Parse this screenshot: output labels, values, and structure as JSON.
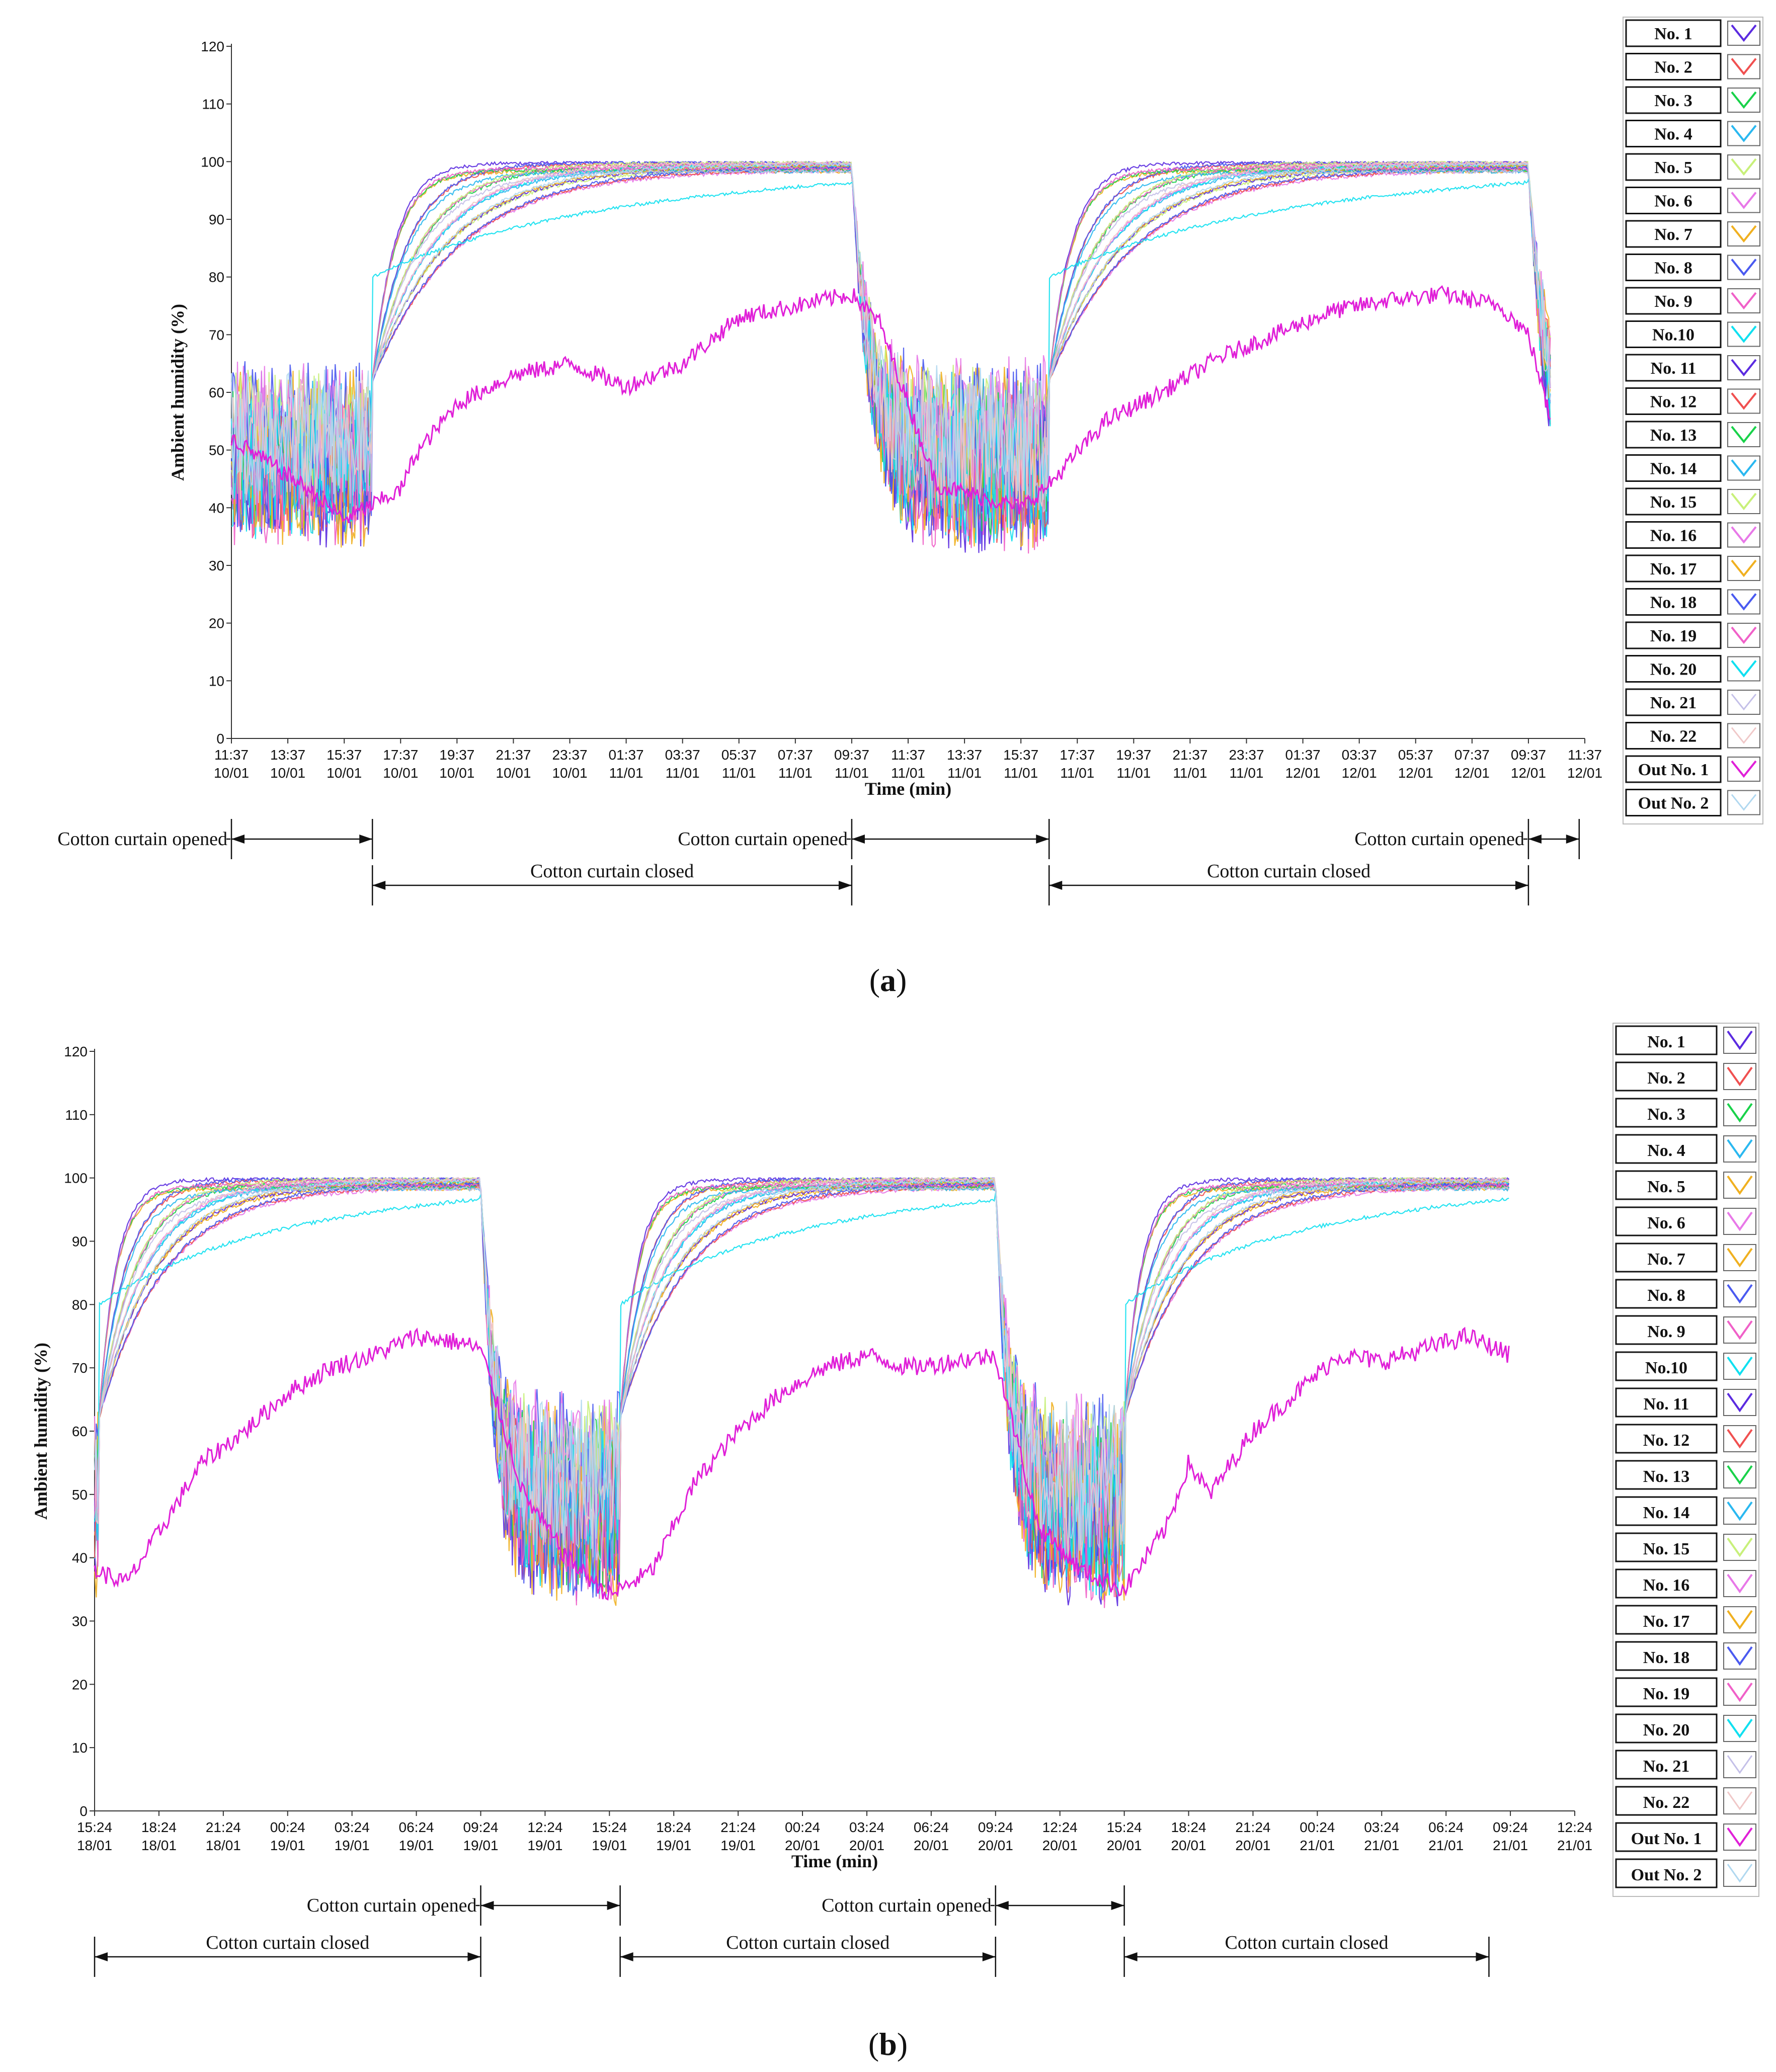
{
  "chart_data": [
    {
      "panel": "a",
      "type": "line",
      "caption_letter": "a",
      "ylabel": "Ambient humidity (%)",
      "xlabel": "Time (min)",
      "ylim": [
        0,
        120
      ],
      "yticks": [
        0,
        10,
        20,
        30,
        40,
        50,
        60,
        70,
        80,
        90,
        100,
        110,
        120
      ],
      "xlim_hours": [
        0,
        48
      ],
      "x_ticks": [
        {
          "t": "11:37",
          "d": "10/01"
        },
        {
          "t": "13:37",
          "d": "10/01"
        },
        {
          "t": "15:37",
          "d": "10/01"
        },
        {
          "t": "17:37",
          "d": "10/01"
        },
        {
          "t": "19:37",
          "d": "10/01"
        },
        {
          "t": "21:37",
          "d": "10/01"
        },
        {
          "t": "23:37",
          "d": "10/01"
        },
        {
          "t": "01:37",
          "d": "11/01"
        },
        {
          "t": "03:37",
          "d": "11/01"
        },
        {
          "t": "05:37",
          "d": "11/01"
        },
        {
          "t": "07:37",
          "d": "11/01"
        },
        {
          "t": "09:37",
          "d": "11/01"
        },
        {
          "t": "11:37",
          "d": "11/01"
        },
        {
          "t": "13:37",
          "d": "11/01"
        },
        {
          "t": "15:37",
          "d": "11/01"
        },
        {
          "t": "17:37",
          "d": "11/01"
        },
        {
          "t": "19:37",
          "d": "11/01"
        },
        {
          "t": "21:37",
          "d": "11/01"
        },
        {
          "t": "23:37",
          "d": "11/01"
        },
        {
          "t": "01:37",
          "d": "12/01"
        },
        {
          "t": "03:37",
          "d": "12/01"
        },
        {
          "t": "05:37",
          "d": "12/01"
        },
        {
          "t": "07:37",
          "d": "12/01"
        },
        {
          "t": "09:37",
          "d": "12/01"
        },
        {
          "t": "11:37",
          "d": "12/01"
        }
      ],
      "rise_times_hours": [
        5.0,
        29.0
      ],
      "drop_times_hours": [
        22.0,
        46.0
      ],
      "end_hour": 46.8,
      "outdoor_keypoints": [
        [
          0,
          52
        ],
        [
          2.5,
          44
        ],
        [
          4,
          38
        ],
        [
          6,
          43
        ],
        [
          6.5,
          49
        ],
        [
          8,
          58
        ],
        [
          10,
          63
        ],
        [
          12,
          65
        ],
        [
          14,
          61
        ],
        [
          16,
          65
        ],
        [
          18,
          73
        ],
        [
          20,
          75
        ],
        [
          22,
          77
        ],
        [
          23,
          72
        ],
        [
          25,
          44
        ],
        [
          28,
          40
        ],
        [
          29,
          44
        ],
        [
          31,
          55
        ],
        [
          33,
          60
        ],
        [
          35,
          66
        ],
        [
          37,
          70
        ],
        [
          39,
          74
        ],
        [
          41,
          76
        ],
        [
          43,
          77
        ],
        [
          45,
          75
        ],
        [
          46,
          70
        ],
        [
          46.8,
          55
        ]
      ],
      "curtain_annotations": [
        {
          "text": "Cotton curtain opened",
          "from_h": 0,
          "to_h": 5.0,
          "row": "upper",
          "label_side": "left"
        },
        {
          "text": "Cotton curtain closed",
          "from_h": 5.0,
          "to_h": 22.0,
          "row": "lower",
          "label_side": "above"
        },
        {
          "text": "Cotton curtain opened",
          "from_h": 22.0,
          "to_h": 29.0,
          "row": "upper",
          "label_side": "left"
        },
        {
          "text": "Cotton curtain closed",
          "from_h": 29.0,
          "to_h": 46.0,
          "row": "lower",
          "label_side": "above"
        },
        {
          "text": "Cotton curtain opened",
          "from_h": 46.0,
          "to_h": 47.8,
          "row": "upper",
          "label_side": "left"
        }
      ]
    },
    {
      "panel": "b",
      "type": "line",
      "caption_letter": "b",
      "ylabel": "Ambient humidity (%)",
      "xlabel": "Time (min)",
      "ylim": [
        0,
        120
      ],
      "yticks": [
        0,
        10,
        20,
        30,
        40,
        50,
        60,
        70,
        80,
        90,
        100,
        110,
        120
      ],
      "xlim_hours": [
        0,
        69
      ],
      "x_ticks": [
        {
          "t": "15:24",
          "d": "18/01"
        },
        {
          "t": "18:24",
          "d": "18/01"
        },
        {
          "t": "21:24",
          "d": "18/01"
        },
        {
          "t": "00:24",
          "d": "19/01"
        },
        {
          "t": "03:24",
          "d": "19/01"
        },
        {
          "t": "06:24",
          "d": "19/01"
        },
        {
          "t": "09:24",
          "d": "19/01"
        },
        {
          "t": "12:24",
          "d": "19/01"
        },
        {
          "t": "15:24",
          "d": "19/01"
        },
        {
          "t": "18:24",
          "d": "19/01"
        },
        {
          "t": "21:24",
          "d": "19/01"
        },
        {
          "t": "00:24",
          "d": "20/01"
        },
        {
          "t": "03:24",
          "d": "20/01"
        },
        {
          "t": "06:24",
          "d": "20/01"
        },
        {
          "t": "09:24",
          "d": "20/01"
        },
        {
          "t": "12:24",
          "d": "20/01"
        },
        {
          "t": "15:24",
          "d": "20/01"
        },
        {
          "t": "18:24",
          "d": "20/01"
        },
        {
          "t": "21:24",
          "d": "20/01"
        },
        {
          "t": "00:24",
          "d": "21/01"
        },
        {
          "t": "03:24",
          "d": "21/01"
        },
        {
          "t": "06:24",
          "d": "21/01"
        },
        {
          "t": "09:24",
          "d": "21/01"
        },
        {
          "t": "12:24",
          "d": "21/01"
        }
      ],
      "rise_times_hours": [
        0.2,
        24.5,
        48.0
      ],
      "drop_times_hours": [
        18.0,
        42.0
      ],
      "end_hour": 66.0,
      "outdoor_keypoints": [
        [
          0,
          38
        ],
        [
          1.5,
          36
        ],
        [
          3,
          44
        ],
        [
          5,
          55
        ],
        [
          7,
          60
        ],
        [
          9,
          66
        ],
        [
          11,
          70
        ],
        [
          13,
          72
        ],
        [
          15,
          75
        ],
        [
          17,
          74
        ],
        [
          18,
          73
        ],
        [
          20,
          50
        ],
        [
          22,
          40
        ],
        [
          24,
          34
        ],
        [
          26,
          38
        ],
        [
          28,
          52
        ],
        [
          30,
          60
        ],
        [
          32,
          66
        ],
        [
          34,
          70
        ],
        [
          36,
          72
        ],
        [
          38,
          70
        ],
        [
          40,
          71
        ],
        [
          42,
          72
        ],
        [
          44,
          45
        ],
        [
          46,
          38
        ],
        [
          48,
          35
        ],
        [
          50,
          45
        ],
        [
          51,
          55
        ],
        [
          52,
          50
        ],
        [
          54,
          60
        ],
        [
          56,
          66
        ],
        [
          58,
          72
        ],
        [
          60,
          71
        ],
        [
          62,
          73
        ],
        [
          64,
          75
        ],
        [
          66,
          72
        ]
      ],
      "curtain_annotations": [
        {
          "text": "Cotton curtain opened",
          "from_h": 18.0,
          "to_h": 24.5,
          "row": "upper",
          "label_side": "left"
        },
        {
          "text": "Cotton curtain opened",
          "from_h": 42.0,
          "to_h": 48.0,
          "row": "upper",
          "label_side": "left"
        },
        {
          "text": "Cotton curtain closed",
          "from_h": 0,
          "to_h": 18.0,
          "row": "lower",
          "label_side": "above"
        },
        {
          "text": "Cotton curtain closed",
          "from_h": 24.5,
          "to_h": 42.0,
          "row": "lower",
          "label_side": "above"
        },
        {
          "text": "Cotton curtain closed",
          "from_h": 48.0,
          "to_h": 65.0,
          "row": "lower",
          "label_side": "above"
        }
      ]
    }
  ],
  "legend": {
    "labels": [
      "No. 1",
      "No. 2",
      "No. 3",
      "No. 4",
      "No. 5",
      "No. 6",
      "No. 7",
      "No. 8",
      "No. 9",
      "No.10",
      "No. 11",
      "No. 12",
      "No. 13",
      "No. 14",
      "No. 15",
      "No. 16",
      "No. 17",
      "No. 18",
      "No. 19",
      "No. 20",
      "No. 21",
      "No. 22",
      "Out No. 1",
      "Out No. 2"
    ],
    "colors_a": [
      "#5b2be0",
      "#f05050",
      "#19d24a",
      "#2ab8f0",
      "#c8f07a",
      "#e878e8",
      "#f0b020",
      "#4a5af0",
      "#f060c8",
      "#10e0f0",
      "#5b2be0",
      "#f05050",
      "#19d24a",
      "#2ab8f0",
      "#c8f07a",
      "#e878e8",
      "#f0b020",
      "#4a5af0",
      "#f060c8",
      "#10e0f0",
      "#c4c0e8",
      "#f0c8c8",
      "#e020d8",
      "#b0d8f0"
    ],
    "colors_b": [
      "#5b2be0",
      "#f05050",
      "#19d24a",
      "#2ab8f0",
      "#f0b020",
      "#e878e8",
      "#f0b020",
      "#4a5af0",
      "#f060c8",
      "#10e0f0",
      "#5b2be0",
      "#f05050",
      "#19d24a",
      "#2ab8f0",
      "#c8f07a",
      "#e878e8",
      "#f0b020",
      "#4a5af0",
      "#f060c8",
      "#10e0f0",
      "#c4c0e8",
      "#f0c8c8",
      "#e020d8",
      "#b0d8f0"
    ]
  }
}
